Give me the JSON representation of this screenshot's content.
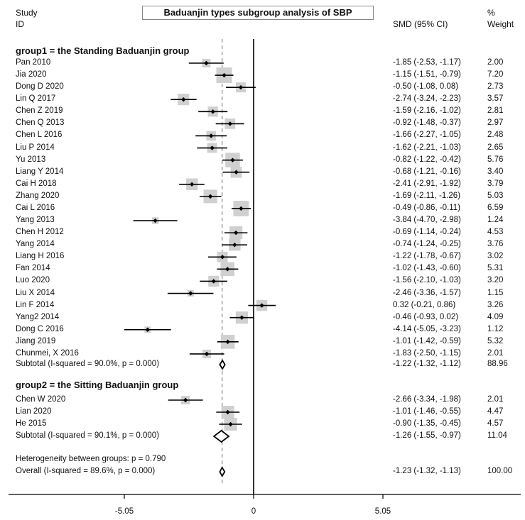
{
  "chart_data": {
    "type": "forest",
    "title": "Baduanjin types subgroup analysis of SBP",
    "header": {
      "study": "Study",
      "id": "ID",
      "effect": "SMD (95% CI)",
      "pct": "%",
      "weight": "Weight"
    },
    "x_axis": {
      "ticks": [
        -5.05,
        0,
        5.05
      ],
      "tick_labels": [
        "-5.05",
        "0",
        "5.05"
      ],
      "range": [
        -8.0,
        8.2
      ]
    },
    "reference_line": {
      "null_value": 0,
      "overall_estimate": -1.23,
      "style": "dashed"
    },
    "groups": [
      {
        "label": "group1 = the Standing Baduanjin group",
        "studies": [
          {
            "study": "Pan 2010",
            "smd": -1.85,
            "lo": -2.53,
            "hi": -1.17,
            "ci_text": "-1.85 (-2.53, -1.17)",
            "weight": 2.0,
            "weight_text": "2.00"
          },
          {
            "study": "Jia 2020",
            "smd": -1.15,
            "lo": -1.51,
            "hi": -0.79,
            "ci_text": "-1.15 (-1.51, -0.79)",
            "weight": 7.2,
            "weight_text": "7.20"
          },
          {
            "study": "Dong D 2020",
            "smd": -0.5,
            "lo": -1.08,
            "hi": 0.08,
            "ci_text": "-0.50 (-1.08, 0.08)",
            "weight": 2.73,
            "weight_text": "2.73"
          },
          {
            "study": "Lin Q 2017",
            "smd": -2.74,
            "lo": -3.24,
            "hi": -2.23,
            "ci_text": "-2.74 (-3.24, -2.23)",
            "weight": 3.57,
            "weight_text": "3.57"
          },
          {
            "study": "Chen Z 2019",
            "smd": -1.59,
            "lo": -2.16,
            "hi": -1.02,
            "ci_text": "-1.59 (-2.16, -1.02)",
            "weight": 2.81,
            "weight_text": "2.81"
          },
          {
            "study": "Chen Q 2013",
            "smd": -0.92,
            "lo": -1.48,
            "hi": -0.37,
            "ci_text": "-0.92 (-1.48, -0.37)",
            "weight": 2.97,
            "weight_text": "2.97"
          },
          {
            "study": "Chen L 2016",
            "smd": -1.66,
            "lo": -2.27,
            "hi": -1.05,
            "ci_text": "-1.66 (-2.27, -1.05)",
            "weight": 2.48,
            "weight_text": "2.48"
          },
          {
            "study": "Liu P 2014",
            "smd": -1.62,
            "lo": -2.21,
            "hi": -1.03,
            "ci_text": "-1.62 (-2.21, -1.03)",
            "weight": 2.65,
            "weight_text": "2.65"
          },
          {
            "study": "Yu 2013",
            "smd": -0.82,
            "lo": -1.22,
            "hi": -0.42,
            "ci_text": "-0.82 (-1.22, -0.42)",
            "weight": 5.76,
            "weight_text": "5.76"
          },
          {
            "study": "Liang Y 2014",
            "smd": -0.68,
            "lo": -1.21,
            "hi": -0.16,
            "ci_text": "-0.68 (-1.21, -0.16)",
            "weight": 3.4,
            "weight_text": "3.40"
          },
          {
            "study": "Cai H 2018",
            "smd": -2.41,
            "lo": -2.91,
            "hi": -1.92,
            "ci_text": "-2.41 (-2.91, -1.92)",
            "weight": 3.79,
            "weight_text": "3.79"
          },
          {
            "study": "Zhang 2020",
            "smd": -1.69,
            "lo": -2.11,
            "hi": -1.26,
            "ci_text": "-1.69 (-2.11, -1.26)",
            "weight": 5.03,
            "weight_text": "5.03"
          },
          {
            "study": "Cai L 2016",
            "smd": -0.49,
            "lo": -0.86,
            "hi": -0.11,
            "ci_text": "-0.49 (-0.86, -0.11)",
            "weight": 6.59,
            "weight_text": "6.59"
          },
          {
            "study": "Yang 2013",
            "smd": -3.84,
            "lo": -4.7,
            "hi": -2.98,
            "ci_text": "-3.84 (-4.70, -2.98)",
            "weight": 1.24,
            "weight_text": "1.24"
          },
          {
            "study": "Chen H 2012",
            "smd": -0.69,
            "lo": -1.14,
            "hi": -0.24,
            "ci_text": "-0.69 (-1.14, -0.24)",
            "weight": 4.53,
            "weight_text": "4.53"
          },
          {
            "study": "Yang 2014",
            "smd": -0.74,
            "lo": -1.24,
            "hi": -0.25,
            "ci_text": "-0.74 (-1.24, -0.25)",
            "weight": 3.76,
            "weight_text": "3.76"
          },
          {
            "study": "Liang H 2016",
            "smd": -1.22,
            "lo": -1.78,
            "hi": -0.67,
            "ci_text": "-1.22 (-1.78, -0.67)",
            "weight": 3.02,
            "weight_text": "3.02"
          },
          {
            "study": "Fan 2014",
            "smd": -1.02,
            "lo": -1.43,
            "hi": -0.6,
            "ci_text": "-1.02 (-1.43, -0.60)",
            "weight": 5.31,
            "weight_text": "5.31"
          },
          {
            "study": "Luo 2020",
            "smd": -1.56,
            "lo": -2.1,
            "hi": -1.03,
            "ci_text": "-1.56 (-2.10, -1.03)",
            "weight": 3.2,
            "weight_text": "3.20"
          },
          {
            "study": "Liu X 2014",
            "smd": -2.46,
            "lo": -3.36,
            "hi": -1.57,
            "ci_text": "-2.46 (-3.36, -1.57)",
            "weight": 1.15,
            "weight_text": "1.15"
          },
          {
            "study": "Lin F 2014",
            "smd": 0.32,
            "lo": -0.21,
            "hi": 0.86,
            "ci_text": "0.32 (-0.21, 0.86)",
            "weight": 3.26,
            "weight_text": "3.26"
          },
          {
            "study": "Yang2 2014",
            "smd": -0.46,
            "lo": -0.93,
            "hi": 0.02,
            "ci_text": "-0.46 (-0.93, 0.02)",
            "weight": 4.09,
            "weight_text": "4.09"
          },
          {
            "study": "Dong C 2016",
            "smd": -4.14,
            "lo": -5.05,
            "hi": -3.23,
            "ci_text": "-4.14 (-5.05, -3.23)",
            "weight": 1.12,
            "weight_text": "1.12"
          },
          {
            "study": "Jiang 2019",
            "smd": -1.01,
            "lo": -1.42,
            "hi": -0.59,
            "ci_text": "-1.01 (-1.42, -0.59)",
            "weight": 5.32,
            "weight_text": "5.32"
          },
          {
            "study": "Chunmei, X 2016",
            "smd": -1.83,
            "lo": -2.5,
            "hi": -1.15,
            "ci_text": "-1.83 (-2.50, -1.15)",
            "weight": 2.01,
            "weight_text": "2.01"
          }
        ],
        "subtotal": {
          "label": "Subtotal  (I-squared = 90.0%, p = 0.000)",
          "smd": -1.22,
          "lo": -1.32,
          "hi": -1.12,
          "ci_text": "-1.22 (-1.32, -1.12)",
          "weight_text": "88.96"
        }
      },
      {
        "label": "group2 = the Sitting Baduanjin group",
        "studies": [
          {
            "study": "Chen W 2020",
            "smd": -2.66,
            "lo": -3.34,
            "hi": -1.98,
            "ci_text": "-2.66 (-3.34, -1.98)",
            "weight": 2.01,
            "weight_text": "2.01"
          },
          {
            "study": "Lian 2020",
            "smd": -1.01,
            "lo": -1.46,
            "hi": -0.55,
            "ci_text": "-1.01 (-1.46, -0.55)",
            "weight": 4.47,
            "weight_text": "4.47"
          },
          {
            "study": "He 2015",
            "smd": -0.9,
            "lo": -1.35,
            "hi": -0.45,
            "ci_text": "-0.90 (-1.35, -0.45)",
            "weight": 4.57,
            "weight_text": "4.57"
          }
        ],
        "subtotal": {
          "label": "Subtotal  (I-squared = 90.1%, p = 0.000)",
          "smd": -1.26,
          "lo": -1.55,
          "hi": -0.97,
          "ci_text": "-1.26 (-1.55, -0.97)",
          "weight_text": "11.04"
        }
      }
    ],
    "heterogeneity": "Heterogeneity between groups: p = 0.790",
    "overall": {
      "label": "Overall  (I-squared = 89.6%, p = 0.000)",
      "smd": -1.23,
      "lo": -1.32,
      "hi": -1.13,
      "ci_text": "-1.23 (-1.32, -1.13)",
      "weight_text": "100.00"
    },
    "colors": {
      "text": "#111111",
      "ci_line": "#000000",
      "weight_box": "#d0d0d0",
      "reference_line": "#888888"
    }
  }
}
